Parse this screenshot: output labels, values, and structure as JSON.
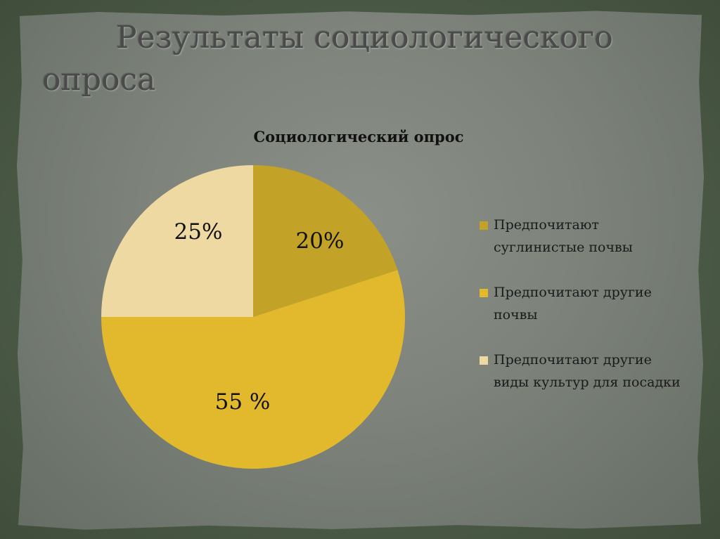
{
  "slide": {
    "title_line1": "Результаты социологического",
    "title_line2": "опроса"
  },
  "chart_data": {
    "type": "pie",
    "title": "Социологический опрос",
    "slices": [
      {
        "label": "Предпочитают суглинистые почвы",
        "value": 20,
        "data_label": "20%",
        "color": "#c2a227"
      },
      {
        "label": "Предпочитают другие почвы",
        "value": 55,
        "data_label": "55 %",
        "color": "#e2b92c"
      },
      {
        "label": "Предпочитают другие виды культур для посадки",
        "value": 25,
        "data_label": "25%",
        "color": "#efd9a3"
      }
    ],
    "legend_position": "right"
  },
  "colors": {
    "background": "#4a5a44",
    "paper": "#7d837b",
    "title_text": "#4a4a4a"
  }
}
